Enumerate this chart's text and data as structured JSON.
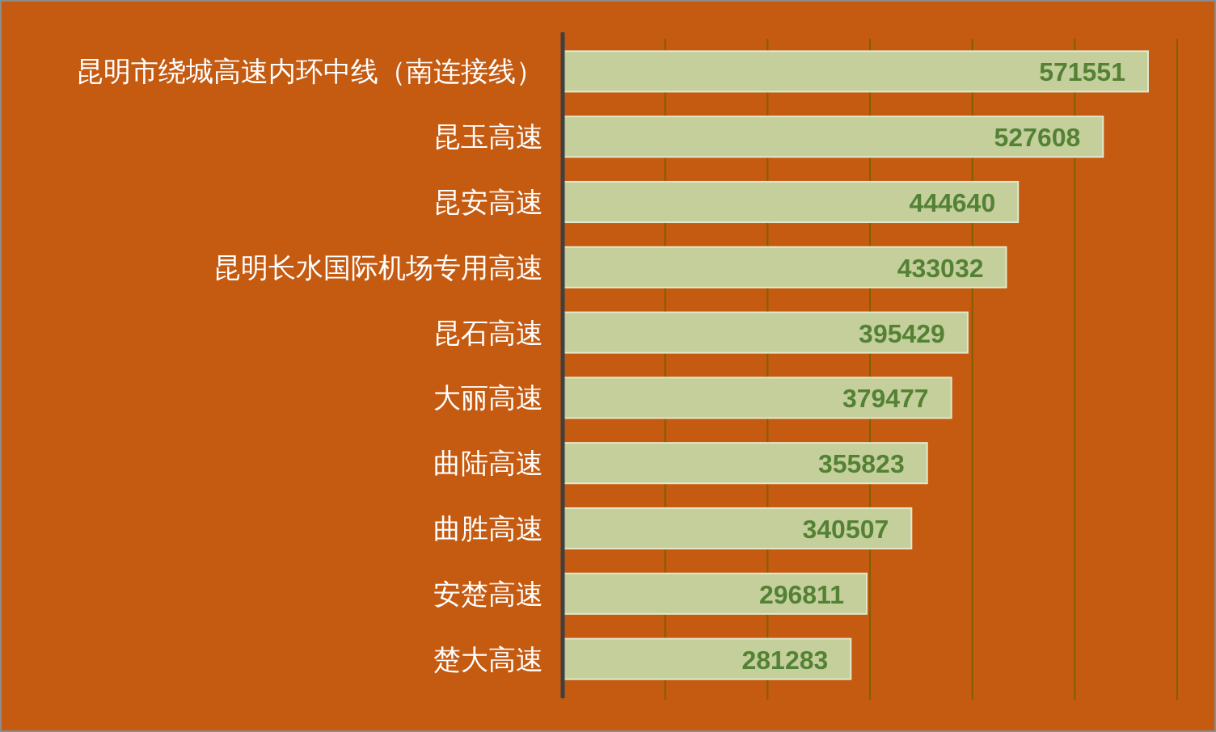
{
  "chart_data": {
    "type": "bar",
    "orientation": "horizontal",
    "categories": [
      "昆明市绕城高速内环中线（南连接线）",
      "昆玉高速",
      "昆安高速",
      "昆明长水国际机场专用高速",
      "昆石高速",
      "大丽高速",
      "曲陆高速",
      "曲胜高速",
      "安楚高速",
      "楚大高速"
    ],
    "values": [
      571551,
      527608,
      444640,
      433032,
      395429,
      379477,
      355823,
      340507,
      296811,
      281283
    ],
    "color": "#c4cf9c",
    "data_labels": true,
    "xlim": [
      0,
      600000
    ],
    "xticks": [
      {
        "value": 0,
        "label": null
      },
      {
        "value": 100000,
        "label": null
      },
      {
        "value": 200000,
        "label": null
      },
      {
        "value": 300000,
        "label": null
      },
      {
        "value": 400000,
        "label": null
      },
      {
        "value": 500000,
        "label": null
      },
      {
        "value": 600000,
        "label": null
      }
    ],
    "grid": "x"
  }
}
